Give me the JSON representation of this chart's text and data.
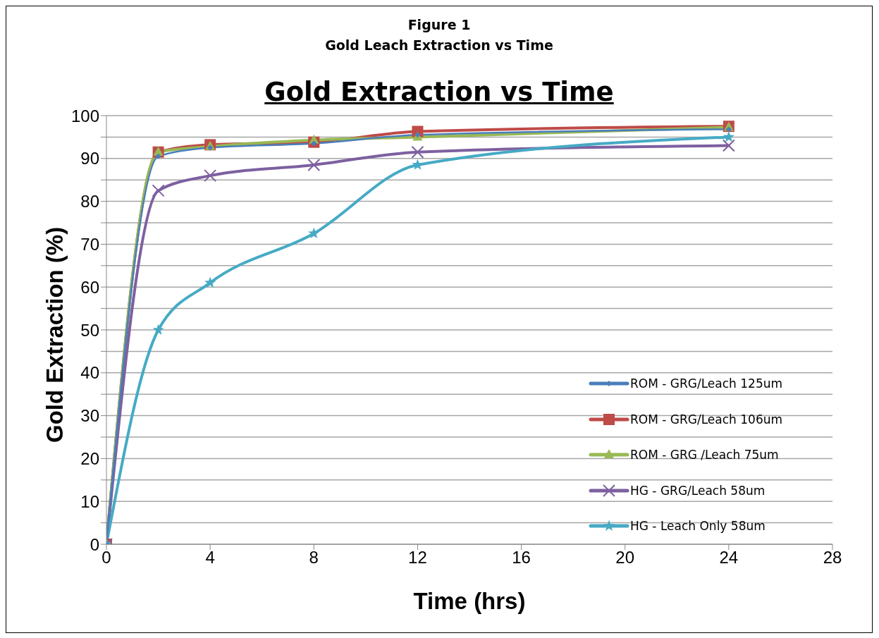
{
  "chart_data": {
    "type": "line",
    "title": "Gold Extraction vs Time",
    "annotations": [
      "Figure 1",
      "Gold Leach Extraction vs Time"
    ],
    "xlabel": "Time (hrs)",
    "ylabel": "Gold Extraction (%)",
    "x": [
      0,
      2,
      4,
      8,
      12,
      24
    ],
    "series": [
      {
        "name": "ROM - GRG/Leach 125um",
        "color": "#4a7ebb",
        "marker": "diamond",
        "values": [
          0,
          90.5,
          92.5,
          93.5,
          95.5,
          96.8
        ]
      },
      {
        "name": "ROM - GRG/Leach 106um",
        "color": "#be4b48",
        "marker": "square",
        "values": [
          0,
          91.5,
          93.2,
          93.8,
          96.3,
          97.5
        ]
      },
      {
        "name": "ROM - GRG /Leach 75um",
        "color": "#98b954",
        "marker": "triangle",
        "values": [
          0,
          91.5,
          92.8,
          94.3,
          95,
          97.3
        ]
      },
      {
        "name": "HG - GRG/Leach 58um",
        "color": "#7d60a0",
        "marker": "cross",
        "values": [
          0,
          82.5,
          86,
          88.5,
          91.5,
          93
        ]
      },
      {
        "name": "HG - Leach Only 58um",
        "color": "#46aac5",
        "marker": "star",
        "values": [
          0,
          50,
          61,
          72.5,
          88.5,
          95
        ]
      }
    ],
    "xlim": [
      0,
      28
    ],
    "xticks": [
      0,
      4,
      8,
      12,
      16,
      20,
      24,
      28
    ],
    "ylim": [
      0,
      100
    ],
    "yticks": [
      0,
      {
        "value": 5,
        "label": null
      },
      10,
      {
        "value": 15,
        "label": null
      },
      20,
      {
        "value": 25,
        "label": null
      },
      30,
      {
        "value": 35,
        "label": null
      },
      40,
      {
        "value": 45,
        "label": null
      },
      50,
      {
        "value": 55,
        "label": null
      },
      60,
      {
        "value": 65,
        "label": null
      },
      70,
      {
        "value": 75,
        "label": null
      },
      80,
      {
        "value": 85,
        "label": null
      },
      90,
      {
        "value": 95,
        "label": null
      },
      100
    ],
    "grid": "y",
    "legend": "bottom right",
    "line_style": "solid"
  }
}
